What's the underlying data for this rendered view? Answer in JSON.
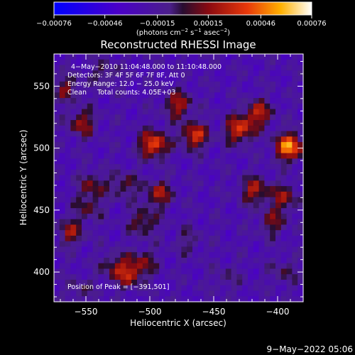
{
  "chart_data": {
    "type": "heatmap",
    "title": "Reconstructed RHESSI Image",
    "xlabel": "Heliocentric X (arcsec)",
    "ylabel": "Heliocentric Y (arcsec)",
    "xlim": [
      -575,
      -380
    ],
    "ylim": [
      376,
      576
    ],
    "x_ticks": [
      -550,
      -500,
      -450,
      -400
    ],
    "y_ticks": [
      400,
      450,
      500,
      550
    ],
    "x_tick_labels": [
      "−550",
      "−500",
      "−450",
      "−400"
    ],
    "y_tick_labels": [
      "400",
      "450",
      "500",
      "550"
    ],
    "colorbar": {
      "range": [
        -0.00076,
        0.00076
      ],
      "tick_labels": [
        "−0.00076",
        "−0.00046",
        "−0.00015",
        "0.00015",
        "0.00046",
        "0.00076"
      ],
      "unit_prefix": "(photons cm",
      "unit_sup1": "−2",
      "unit_mid1": " s",
      "unit_sup2": "−1",
      "unit_mid2": " asec",
      "unit_sup3": "−2",
      "unit_suffix": ")"
    },
    "annotations": [
      "4−May−2010 11:04:48.000 to 11:10:48.000",
      "Detectors: 3F 4F 5F 6F 7F 8F, Att 0",
      "Energy Range: 12.0 − 25.0 keV",
      "Clean     Total counts: 4.05E+03"
    ],
    "peak_label": "Position of Peak = [−391,501]",
    "peak": [
      -391,
      501
    ],
    "sources": [
      {
        "x": -391,
        "y": 501,
        "amp": 0.00074
      },
      {
        "x": -497,
        "y": 503,
        "amp": 0.00062
      },
      {
        "x": -465,
        "y": 510,
        "amp": 0.00052
      },
      {
        "x": -430,
        "y": 515,
        "amp": 0.00054
      },
      {
        "x": -415,
        "y": 528,
        "amp": 0.00045
      },
      {
        "x": -478,
        "y": 535,
        "amp": 0.00042
      },
      {
        "x": -553,
        "y": 520,
        "amp": 0.00038
      },
      {
        "x": -565,
        "y": 548,
        "amp": 0.0003
      },
      {
        "x": -535,
        "y": 560,
        "amp": 0.00022
      },
      {
        "x": -493,
        "y": 463,
        "amp": 0.0004
      },
      {
        "x": -505,
        "y": 440,
        "amp": 0.00033
      },
      {
        "x": -520,
        "y": 470,
        "amp": 0.00028
      },
      {
        "x": -545,
        "y": 470,
        "amp": 0.0003
      },
      {
        "x": -548,
        "y": 452,
        "amp": 0.00025
      },
      {
        "x": -562,
        "y": 432,
        "amp": 0.00036
      },
      {
        "x": -528,
        "y": 405,
        "amp": 0.00028
      },
      {
        "x": -516,
        "y": 398,
        "amp": 0.0004
      },
      {
        "x": -505,
        "y": 408,
        "amp": 0.00028
      },
      {
        "x": -418,
        "y": 466,
        "amp": 0.00042
      },
      {
        "x": -395,
        "y": 460,
        "amp": 0.00036
      },
      {
        "x": -404,
        "y": 440,
        "amp": 0.0003
      },
      {
        "x": -470,
        "y": 425,
        "amp": 0.00018
      },
      {
        "x": -440,
        "y": 395,
        "amp": 0.00015
      },
      {
        "x": -395,
        "y": 400,
        "amp": 0.0002
      },
      {
        "x": -555,
        "y": 385,
        "amp": 0.00018
      }
    ],
    "grid": false
  },
  "footer": {
    "date": "9−May−2022 05:06"
  }
}
